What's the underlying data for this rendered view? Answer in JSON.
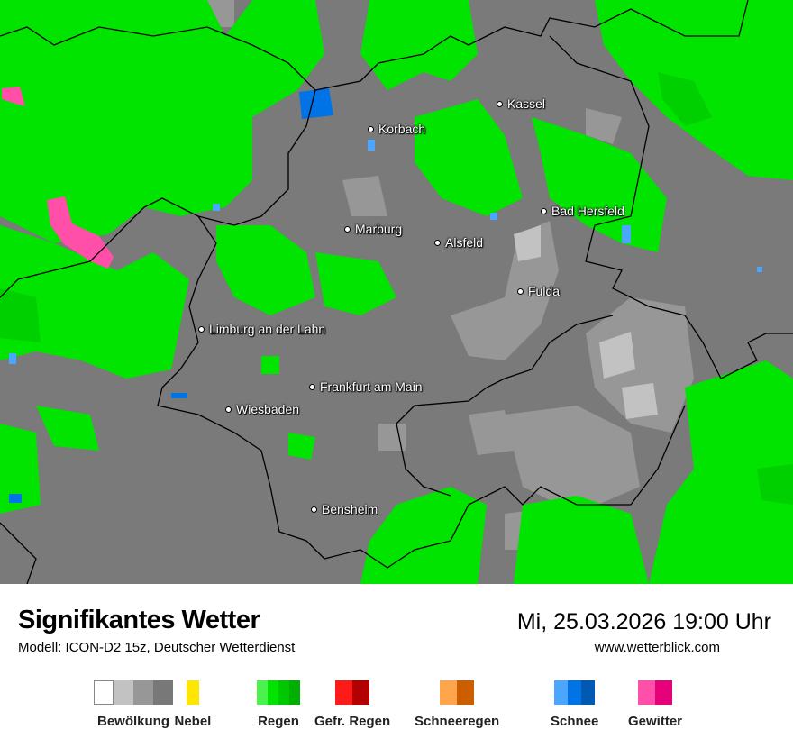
{
  "header": {
    "title": "Signifikantes Wetter",
    "model": "Modell: ICON-D2 15z, Deutscher Wetterdienst",
    "datetime": "Mi, 25.03.2026 19:00 Uhr",
    "website": "www.wetterblick.com"
  },
  "colors": {
    "cloud": [
      "#ffffff",
      "#c2c2c2",
      "#979797",
      "#787878"
    ],
    "fog": [
      "#ffe600"
    ],
    "rain": [
      "#4cf24c",
      "#00e400",
      "#00c800",
      "#00b000"
    ],
    "freezing_rain": [
      "#ff1a1a",
      "#b30000"
    ],
    "sleet": [
      "#ffa54c",
      "#cc5e00"
    ],
    "snow": [
      "#4ca6ff",
      "#0073e6",
      "#005ab3"
    ],
    "thunderstorm": [
      "#ff4fa8",
      "#e6007a"
    ]
  },
  "legend": [
    {
      "label": "Bewölkung",
      "key": "cloud"
    },
    {
      "label": "Nebel",
      "key": "fog"
    },
    {
      "label": "Regen",
      "key": "rain"
    },
    {
      "label": "Gefr. Regen",
      "key": "freezing_rain"
    },
    {
      "label": "Schneeregen",
      "key": "sleet"
    },
    {
      "label": "Schnee",
      "key": "snow"
    },
    {
      "label": "Gewitter",
      "key": "thunderstorm"
    }
  ],
  "cities": [
    {
      "name": "Kassel"
    },
    {
      "name": "Korbach"
    },
    {
      "name": "Bad Hersfeld"
    },
    {
      "name": "Marburg"
    },
    {
      "name": "Alsfeld"
    },
    {
      "name": "Fulda"
    },
    {
      "name": "Limburg an der Lahn"
    },
    {
      "name": "Frankfurt am Main"
    },
    {
      "name": "Wiesbaden"
    },
    {
      "name": "Bensheim"
    }
  ]
}
